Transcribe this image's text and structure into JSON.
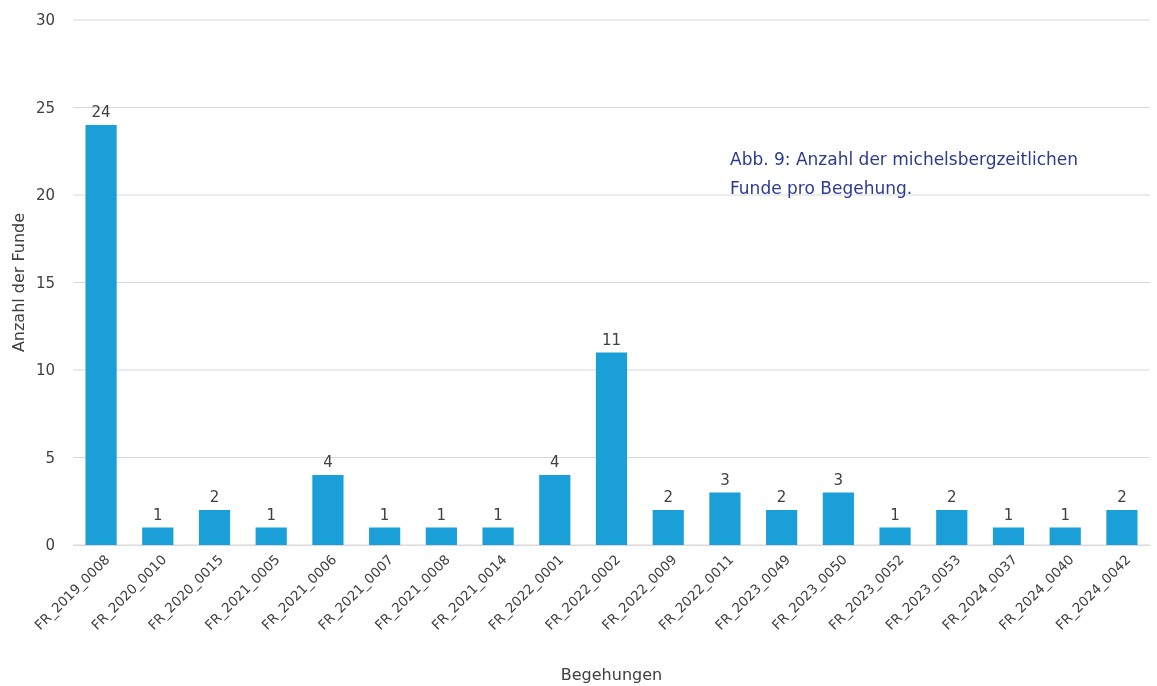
{
  "chart_data": {
    "type": "bar",
    "xlabel": "Begehungen",
    "ylabel": "Anzahl der Funde",
    "annotations": [
      "Abb. 9: Anzahl der michelsbergzeitlichen Funde pro Begehung."
    ],
    "categories": [
      "FR_2019_0008",
      "FR_2020_0010",
      "FR_2020_0015",
      "FR_2021_0005",
      "FR_2021_0006",
      "FR_2021_0007",
      "FR_2021_0008",
      "FR_2021_0014",
      "FR_2022_0001",
      "FR_2022_0002",
      "FR_2022_0009",
      "FR_2022_0011",
      "FR_2023_0049",
      "FR_2023_0050",
      "FR_2023_0052",
      "FR_2023_0053",
      "FR_2024_0037",
      "FR_2024_0040",
      "FR_2024_0042"
    ],
    "values": [
      24,
      1,
      2,
      1,
      4,
      1,
      1,
      1,
      4,
      11,
      2,
      3,
      2,
      3,
      1,
      2,
      1,
      1,
      2
    ],
    "color": "#1a9fd9",
    "ylim": [
      0,
      30
    ],
    "yticks": [
      0,
      5,
      10,
      15,
      20,
      25,
      30
    ],
    "grid": "y",
    "data_labels": true
  }
}
